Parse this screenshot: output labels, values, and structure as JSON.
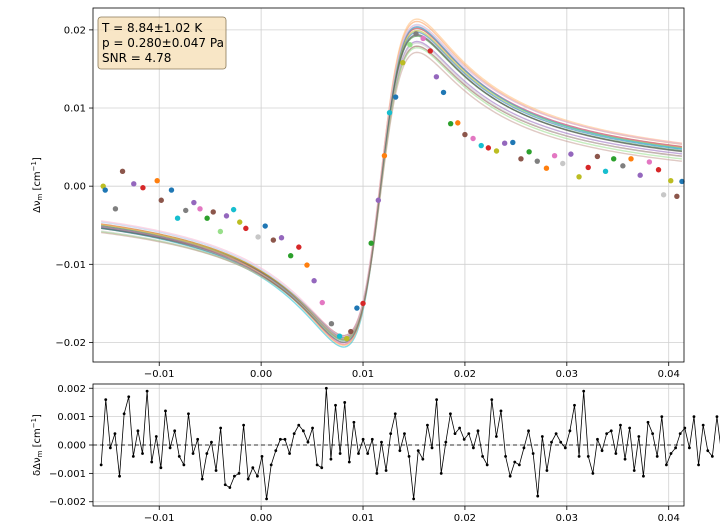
{
  "chart_data": [
    {
      "type": "scatter",
      "panel": "main",
      "title": "",
      "ylabel_parts": {
        "pre": "Δν",
        "sub": "m",
        "mid": " [cm",
        "sup": "−1",
        "post": "]"
      },
      "xlim": [
        -0.0165,
        0.0415
      ],
      "ylim": [
        -0.0225,
        0.0228
      ],
      "x_ticks": [
        -0.01,
        0.0,
        0.01,
        0.02,
        0.03,
        0.04
      ],
      "x_tick_labels": [
        "−0.01",
        "0.00",
        "0.01",
        "0.02",
        "0.03",
        "0.04"
      ],
      "y_ticks": [
        -0.02,
        -0.01,
        0.0,
        0.01,
        0.02
      ],
      "y_tick_labels": [
        "−0.02",
        "−0.01",
        "0.00",
        "0.01",
        "0.02"
      ],
      "grid": true,
      "annotation": {
        "lines": [
          "T = 8.84±1.02 K",
          "p = 0.280±0.047 Pa",
          "SNR = 4.78"
        ],
        "position": "top-left",
        "box_face": "#f5deb3",
        "box_edge": "#8a7a5a"
      },
      "model": {
        "x0": 0.0117,
        "width": 0.0036,
        "amplitude": 0.0197
      },
      "fit_series": [
        {
          "color": "#ff9a5a",
          "scale": 1.05,
          "offset": 0.0004
        },
        {
          "color": "#1f77b4",
          "scale": 1.0,
          "offset": 0.0
        },
        {
          "color": "#9edae5",
          "scale": 1.02,
          "offset": 0.0002
        },
        {
          "color": "#2ca02c",
          "scale": 0.98,
          "offset": -0.0001
        },
        {
          "color": "#d62728",
          "scale": 1.01,
          "offset": 0.0003
        },
        {
          "color": "#9467bd",
          "scale": 0.96,
          "offset": -0.0004
        },
        {
          "color": "#8c564b",
          "scale": 0.94,
          "offset": -0.0006
        },
        {
          "color": "#e377c2",
          "scale": 1.03,
          "offset": 0.0001
        },
        {
          "color": "#7f7f7f",
          "scale": 0.99,
          "offset": -0.0002
        },
        {
          "color": "#bcbd22",
          "scale": 1.0,
          "offset": 0.0002
        },
        {
          "color": "#17becf",
          "scale": 1.04,
          "offset": -0.0001
        },
        {
          "color": "#c7c7c7",
          "scale": 0.97,
          "offset": -0.0008
        },
        {
          "color": "#aec7e8",
          "scale": 1.02,
          "offset": 0.0006
        },
        {
          "color": "#98df8a",
          "scale": 0.95,
          "offset": -0.001
        },
        {
          "color": "#ffbb78",
          "scale": 1.06,
          "offset": 0.0005
        },
        {
          "color": "#c49c94",
          "scale": 0.93,
          "offset": -0.0012
        },
        {
          "color": "#f7b6d2",
          "scale": 1.01,
          "offset": 0.0007
        },
        {
          "color": "#555555",
          "scale": 1.0,
          "offset": -0.0003
        }
      ],
      "points": [
        {
          "x": -0.0155,
          "y": 0.0,
          "color": "#bcbd22"
        },
        {
          "x": -0.0153,
          "y": -0.0005,
          "color": "#1f77b4"
        },
        {
          "x": -0.0143,
          "y": -0.0029,
          "color": "#7f7f7f"
        },
        {
          "x": -0.0136,
          "y": 0.0019,
          "color": "#8c564b"
        },
        {
          "x": -0.0125,
          "y": 0.0003,
          "color": "#9467bd"
        },
        {
          "x": -0.0116,
          "y": -0.0002,
          "color": "#d62728"
        },
        {
          "x": -0.0102,
          "y": 0.0007,
          "color": "#ff7f0e"
        },
        {
          "x": -0.0098,
          "y": -0.0018,
          "color": "#8c564b"
        },
        {
          "x": -0.0088,
          "y": -0.0005,
          "color": "#1f77b4"
        },
        {
          "x": -0.0082,
          "y": -0.0041,
          "color": "#17becf"
        },
        {
          "x": -0.0074,
          "y": -0.0031,
          "color": "#7f7f7f"
        },
        {
          "x": -0.0066,
          "y": -0.0021,
          "color": "#9467bd"
        },
        {
          "x": -0.006,
          "y": -0.0029,
          "color": "#e377c2"
        },
        {
          "x": -0.0053,
          "y": -0.0041,
          "color": "#2ca02c"
        },
        {
          "x": -0.0047,
          "y": -0.0033,
          "color": "#8c564b"
        },
        {
          "x": -0.004,
          "y": -0.0058,
          "color": "#98df8a"
        },
        {
          "x": -0.0034,
          "y": -0.0038,
          "color": "#9467bd"
        },
        {
          "x": -0.0027,
          "y": -0.003,
          "color": "#17becf"
        },
        {
          "x": -0.0021,
          "y": -0.0046,
          "color": "#bcbd22"
        },
        {
          "x": -0.0015,
          "y": -0.0054,
          "color": "#d62728"
        },
        {
          "x": -0.0003,
          "y": -0.0065,
          "color": "#c7c7c7"
        },
        {
          "x": 0.0004,
          "y": -0.0051,
          "color": "#1f77b4"
        },
        {
          "x": 0.0012,
          "y": -0.0069,
          "color": "#8c564b"
        },
        {
          "x": 0.002,
          "y": -0.0066,
          "color": "#9467bd"
        },
        {
          "x": 0.0029,
          "y": -0.0089,
          "color": "#2ca02c"
        },
        {
          "x": 0.0037,
          "y": -0.0078,
          "color": "#d62728"
        },
        {
          "x": 0.0045,
          "y": -0.0101,
          "color": "#ff7f0e"
        },
        {
          "x": 0.0052,
          "y": -0.0121,
          "color": "#9467bd"
        },
        {
          "x": 0.006,
          "y": -0.0149,
          "color": "#e377c2"
        },
        {
          "x": 0.0069,
          "y": -0.0176,
          "color": "#7f7f7f"
        },
        {
          "x": 0.0077,
          "y": -0.0192,
          "color": "#17becf"
        },
        {
          "x": 0.0084,
          "y": -0.0195,
          "color": "#bcbd22"
        },
        {
          "x": 0.0088,
          "y": -0.0186,
          "color": "#8c564b"
        },
        {
          "x": 0.0094,
          "y": -0.0156,
          "color": "#1f77b4"
        },
        {
          "x": 0.01,
          "y": -0.015,
          "color": "#d62728"
        },
        {
          "x": 0.0108,
          "y": -0.0073,
          "color": "#2ca02c"
        },
        {
          "x": 0.0115,
          "y": -0.0018,
          "color": "#9467bd"
        },
        {
          "x": 0.0121,
          "y": 0.0039,
          "color": "#ff7f0e"
        },
        {
          "x": 0.0126,
          "y": 0.0094,
          "color": "#17becf"
        },
        {
          "x": 0.0132,
          "y": 0.0114,
          "color": "#1f77b4"
        },
        {
          "x": 0.0139,
          "y": 0.0158,
          "color": "#bcbd22"
        },
        {
          "x": 0.0146,
          "y": 0.0181,
          "color": "#98df8a"
        },
        {
          "x": 0.0152,
          "y": 0.0195,
          "color": "#7f7f7f"
        },
        {
          "x": 0.0159,
          "y": 0.0189,
          "color": "#e377c2"
        },
        {
          "x": 0.0166,
          "y": 0.0173,
          "color": "#d62728"
        },
        {
          "x": 0.0172,
          "y": 0.014,
          "color": "#9467bd"
        },
        {
          "x": 0.0179,
          "y": 0.012,
          "color": "#1f77b4"
        },
        {
          "x": 0.0186,
          "y": 0.008,
          "color": "#2ca02c"
        },
        {
          "x": 0.0193,
          "y": 0.0081,
          "color": "#ff7f0e"
        },
        {
          "x": 0.02,
          "y": 0.0066,
          "color": "#8c564b"
        },
        {
          "x": 0.0208,
          "y": 0.0061,
          "color": "#e377c2"
        },
        {
          "x": 0.0216,
          "y": 0.0052,
          "color": "#17becf"
        },
        {
          "x": 0.0223,
          "y": 0.0049,
          "color": "#d62728"
        },
        {
          "x": 0.0231,
          "y": 0.0045,
          "color": "#bcbd22"
        },
        {
          "x": 0.0239,
          "y": 0.0055,
          "color": "#9467bd"
        },
        {
          "x": 0.0247,
          "y": 0.0056,
          "color": "#1f77b4"
        },
        {
          "x": 0.0255,
          "y": 0.0035,
          "color": "#8c564b"
        },
        {
          "x": 0.0263,
          "y": 0.0044,
          "color": "#2ca02c"
        },
        {
          "x": 0.0271,
          "y": 0.0032,
          "color": "#7f7f7f"
        },
        {
          "x": 0.028,
          "y": 0.0023,
          "color": "#ff7f0e"
        },
        {
          "x": 0.0288,
          "y": 0.0039,
          "color": "#e377c2"
        },
        {
          "x": 0.0296,
          "y": 0.0029,
          "color": "#c7c7c7"
        },
        {
          "x": 0.0304,
          "y": 0.0041,
          "color": "#9467bd"
        },
        {
          "x": 0.0312,
          "y": 0.0012,
          "color": "#bcbd22"
        },
        {
          "x": 0.0321,
          "y": 0.0024,
          "color": "#d62728"
        },
        {
          "x": 0.033,
          "y": 0.0038,
          "color": "#8c564b"
        },
        {
          "x": 0.0338,
          "y": 0.0019,
          "color": "#17becf"
        },
        {
          "x": 0.0346,
          "y": 0.0035,
          "color": "#2ca02c"
        },
        {
          "x": 0.0355,
          "y": 0.0026,
          "color": "#7f7f7f"
        },
        {
          "x": 0.0363,
          "y": 0.0035,
          "color": "#ff7f0e"
        },
        {
          "x": 0.0372,
          "y": 0.0014,
          "color": "#9467bd"
        },
        {
          "x": 0.0381,
          "y": 0.0031,
          "color": "#e377c2"
        },
        {
          "x": 0.039,
          "y": 0.0021,
          "color": "#d62728"
        },
        {
          "x": 0.0395,
          "y": -0.0011,
          "color": "#c7c7c7"
        },
        {
          "x": 0.0402,
          "y": 0.0007,
          "color": "#bcbd22"
        },
        {
          "x": 0.0408,
          "y": -0.0013,
          "color": "#8c564b"
        },
        {
          "x": 0.0413,
          "y": 0.0006,
          "color": "#1f77b4"
        }
      ]
    },
    {
      "type": "line",
      "panel": "residuals",
      "title": "",
      "ylabel_parts": {
        "pre": "δΔν",
        "sub": "m",
        "mid": " [cm",
        "sup": "−1",
        "post": "]"
      },
      "xlim": [
        -0.0165,
        0.0415
      ],
      "ylim": [
        -0.00215,
        0.00215
      ],
      "x_ticks": [
        -0.01,
        0.0,
        0.01,
        0.02,
        0.03,
        0.04
      ],
      "x_tick_labels": [
        "−0.01",
        "0.00",
        "0.01",
        "0.02",
        "0.03",
        "0.04"
      ],
      "y_ticks": [
        -0.002,
        -0.001,
        0.0,
        0.001,
        0.002
      ],
      "y_tick_labels": [
        "−0.002",
        "−0.001",
        "0.000",
        "0.001",
        "0.002"
      ],
      "grid": true,
      "zero_line": "dashed",
      "line_color": "#000000",
      "x_start": -0.0157,
      "x_step": 0.000451,
      "values": [
        -0.0007,
        0.0016,
        -0.0001,
        0.0004,
        -0.0011,
        0.0011,
        0.0017,
        -0.0004,
        0.0005,
        -0.0003,
        0.0019,
        -0.0006,
        0.0003,
        -0.0008,
        0.0012,
        -0.0001,
        0.0005,
        -0.0004,
        -0.0007,
        0.0011,
        -0.0003,
        0.0002,
        -0.0012,
        -0.0003,
        0.0001,
        -0.0009,
        0.0006,
        -0.0014,
        -0.0015,
        -0.0011,
        -0.001,
        0.0007,
        -0.0012,
        -0.0008,
        -0.0011,
        -0.0004,
        -0.0019,
        -0.0007,
        -0.0002,
        0.0002,
        0.0002,
        -0.0003,
        0.0004,
        0.0007,
        0.0005,
        0.0001,
        0.0006,
        -0.0007,
        -0.0008,
        0.002,
        -0.0005,
        0.0014,
        -0.0003,
        0.0015,
        -0.0006,
        0.0008,
        -0.0003,
        0.0002,
        -0.0003,
        0.0002,
        -0.001,
        0.0001,
        -0.0009,
        0.0004,
        0.0011,
        -0.0002,
        0.0004,
        -0.0004,
        -0.0019,
        -0.0002,
        -0.0005,
        0.0007,
        -0.0001,
        0.0016,
        -0.001,
        0.0001,
        0.0011,
        0.0004,
        0.0006,
        0.0002,
        0.0004,
        -0.0001,
        0.0005,
        -0.0004,
        -0.0007,
        0.0016,
        0.0003,
        0.0012,
        -0.0004,
        -0.0011,
        -0.0006,
        -0.0007,
        -0.0001,
        0.0005,
        -0.0003,
        -0.0018,
        0.0003,
        -0.0009,
        0.0001,
        0.0004,
        0.0001,
        -0.0001,
        0.0005,
        0.0014,
        -0.0004,
        0.0019,
        -0.0004,
        -0.001,
        0.0002,
        -0.0002,
        0.0004,
        0.0005,
        -0.0003,
        0.0007,
        -0.0005,
        0.0006,
        -0.0009,
        0.0003,
        -0.0011,
        0.0008,
        0.0004,
        -0.0004,
        0.001,
        -0.0007,
        -0.0003,
        -0.0001,
        0.0004,
        0.0006,
        -0.0001,
        0.001,
        -0.0007,
        0.0007,
        -0.0002,
        -0.0004,
        0.001,
        -0.0003
      ]
    }
  ]
}
